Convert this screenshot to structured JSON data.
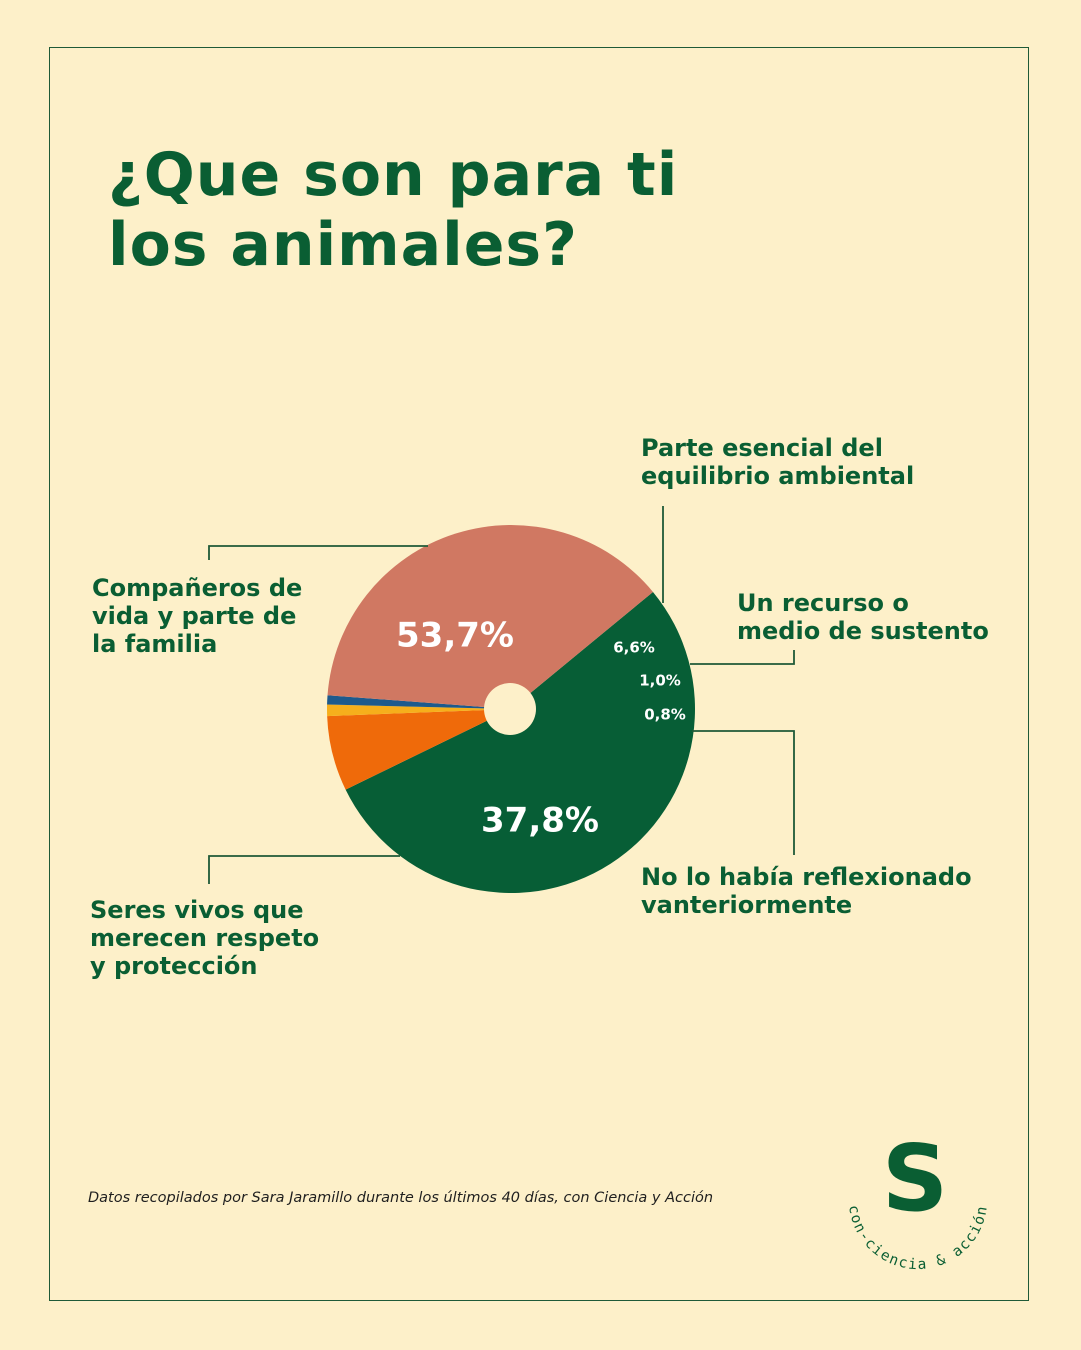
{
  "title_lines": [
    "¿Que son para ti",
    "los animales?"
  ],
  "chart_data": {
    "type": "pie",
    "title": "¿Que son para ti los animales?",
    "donut_hole": true,
    "slices": [
      {
        "label_lines": [
          "Compañeros de",
          "vida y parte de",
          "la familia"
        ],
        "value": 53.7,
        "display": "53,7%",
        "color": "#075e36",
        "text_color": "#ffffff"
      },
      {
        "label_lines": [
          "Parte esencial del",
          "equilibrio ambiental"
        ],
        "value": 6.6,
        "display": "6,6%",
        "color": "#ef6a0a",
        "text_color": "#ffffff"
      },
      {
        "label_lines": [
          "Un recurso o",
          "medio de sustento"
        ],
        "value": 1.0,
        "display": "1,0%",
        "color": "#f6af1c",
        "text_color": "#ffffff"
      },
      {
        "label_lines": [
          "No lo había reflexionado",
          "vanteriormente"
        ],
        "value": 0.8,
        "display": "0,8%",
        "color": "#1d5a8d",
        "text_color": "#ffffff"
      },
      {
        "label_lines": [
          "Seres vivos que",
          "merecen respeto",
          "y protección"
        ],
        "value": 37.8,
        "display": "37,8%",
        "color": "#d07862",
        "text_color": "#ffffff"
      }
    ]
  },
  "footnote": "Datos recopilados por Sara Jaramillo durante los últimos 40 días, con Ciencia y Acción",
  "logo": {
    "mark": "S",
    "ring_text": "con-ciencia & acción",
    "color": "#0a5e33"
  },
  "colors": {
    "background": "#fdf0c9",
    "text": "#0a5e33",
    "frame": "#1f5a37"
  }
}
